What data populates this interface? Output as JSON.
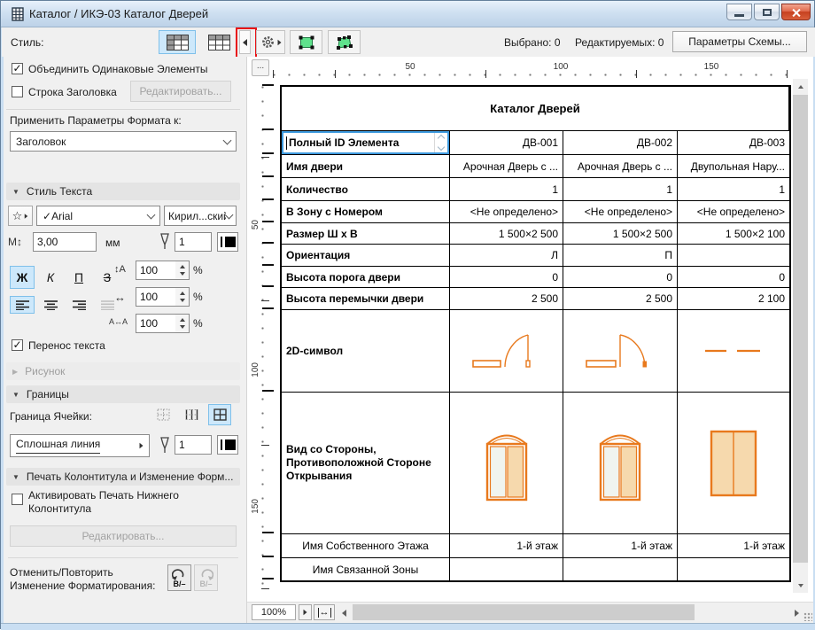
{
  "window": {
    "title": "Каталог / ИКЭ-03 Каталог Дверей"
  },
  "toolbar": {
    "style_label": "Стиль:",
    "selected_label": "Выбрано: 0",
    "editable_label": "Редактируемых: 0",
    "scheme_button": "Параметры Схемы..."
  },
  "panel": {
    "merge_items": "Объединить Одинаковые Элементы",
    "header_row": "Строка Заголовка",
    "edit_button": "Редактировать...",
    "apply_format_label": "Применить Параметры Формата к:",
    "apply_format_value": "Заголовок",
    "text_style_section": "Стиль Текста",
    "font_name": "Arial",
    "script_value": "Кирил...ский",
    "text_size": "3,00",
    "unit_mm": "мм",
    "pen_number": "1",
    "bold": "Ж",
    "italic": "К",
    "underline": "П",
    "strike": "З",
    "line_spacing": "100",
    "char_width": "100",
    "char_spacing": "100",
    "percent": "%",
    "wrap_text": "Перенос текста",
    "drawing_section": "Рисунок",
    "borders_section": "Границы",
    "cell_border_label": "Граница Ячейки:",
    "line_type": "Сплошная линия",
    "border_pen": "1",
    "footer_section": "Печать Колонтитула и Изменение Форм...",
    "footer_checkbox": "Активировать Печать Нижнего Колонтитула",
    "footer_edit_button": "Редактировать...",
    "undo_label_1": "Отменить/Повторить",
    "undo_label_2": "Изменение Форматирования:"
  },
  "ruler": {
    "corner": "...",
    "h": [
      "50",
      "100",
      "150"
    ],
    "v": [
      "50",
      "100",
      "150"
    ]
  },
  "table": {
    "title": "Каталог Дверей",
    "id_row": {
      "label": "Полный ID Элемента",
      "values": [
        "ДВ-001",
        "ДВ-002",
        "ДВ-003"
      ]
    },
    "rows": [
      {
        "label": "Имя двери",
        "values": [
          "Арочная Дверь с ...",
          "Арочная Дверь с ...",
          "Двупольная Нару..."
        ]
      },
      {
        "label": "Количество",
        "values": [
          "1",
          "1",
          "1"
        ]
      },
      {
        "label": "В Зону с Номером",
        "values": [
          "<Не определено>",
          "<Не определено>",
          "<Не определено>"
        ]
      },
      {
        "label": "Размер Ш х В",
        "values": [
          "1 500×2 500",
          "1 500×2 500",
          "1 500×2 100"
        ]
      },
      {
        "label": "Ориентация",
        "values": [
          "Л",
          "П",
          ""
        ]
      },
      {
        "label": "Высота порога двери",
        "values": [
          "0",
          "0",
          "0"
        ]
      },
      {
        "label": "Высота перемычки двери",
        "values": [
          "2 500",
          "2 500",
          "2 100"
        ]
      }
    ],
    "symbol_row_label": "2D-символ",
    "view_row_label": "Вид со Стороны, Противоположной Стороне Открывания",
    "floor_row": {
      "label": "Имя Собственного Этажа",
      "values": [
        "1-й этаж",
        "1-й этаж",
        "1-й этаж"
      ]
    },
    "zone_row": {
      "label": "Имя Связанной Зоны",
      "values": [
        "",
        "",
        ""
      ]
    }
  },
  "statusbar": {
    "zoom": "100%"
  },
  "icons": {
    "check": "✓",
    "star": "☆",
    "tri_down": "▼",
    "tri_right": "▶",
    "size_icon": "M↕",
    "line_spacing_icon": "↕A",
    "char_width_icon": "↔",
    "char_spacing_icon": "A↔A",
    "fit_icon": "↔",
    "undo_format": "B/–"
  },
  "colors": {
    "selection_blue": "#cde8fb",
    "door_outline": "#e8791d",
    "door_fill": "#f6d9ad",
    "annotation_red": "#e81216"
  }
}
